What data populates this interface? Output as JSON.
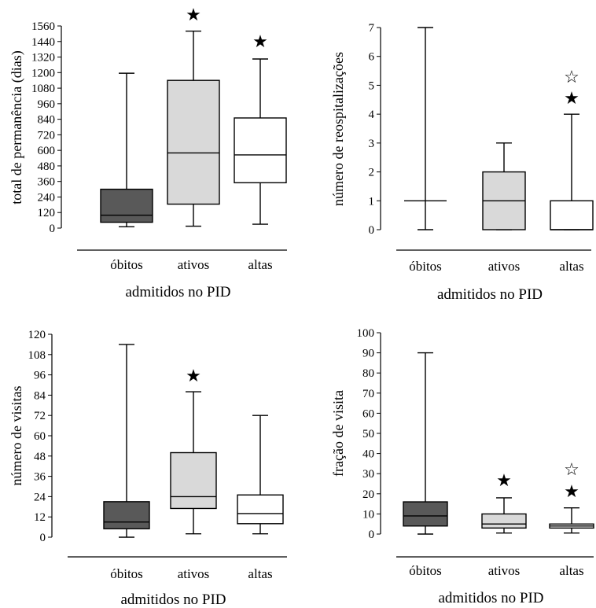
{
  "colors": {
    "obitos": "#595959",
    "ativos": "#d9d9d9",
    "altas": "#ffffff",
    "line": "#000000"
  },
  "chart_data": [
    {
      "type": "box",
      "ylabel": "total de permanência (dias)",
      "xlabel": "admitidos no PID",
      "categories": [
        "óbitos",
        "ativos",
        "altas"
      ],
      "ylim": [
        0,
        1560
      ],
      "yticks": [
        0,
        120,
        240,
        360,
        480,
        600,
        720,
        840,
        960,
        1080,
        1200,
        1320,
        1440,
        1560
      ],
      "boxes": [
        {
          "min": 10,
          "q1": 45,
          "median": 100,
          "q3": 300,
          "max": 1195,
          "fill": "#595959"
        },
        {
          "min": 15,
          "q1": 185,
          "median": 580,
          "q3": 1140,
          "max": 1520,
          "fill": "#d9d9d9"
        },
        {
          "min": 30,
          "q1": 350,
          "median": 565,
          "q3": 850,
          "max": 1305,
          "fill": "#ffffff"
        }
      ],
      "markers": [
        {
          "category": 1,
          "symbol": "★",
          "filled": true
        },
        {
          "category": 2,
          "symbol": "★",
          "filled": true
        }
      ]
    },
    {
      "type": "box",
      "ylabel": "número de reospitalizações",
      "xlabel": "admitidos no PID",
      "categories": [
        "óbitos",
        "ativos",
        "altas"
      ],
      "ylim": [
        0,
        7
      ],
      "yticks": [
        0,
        1,
        2,
        3,
        4,
        5,
        6,
        7
      ],
      "boxes": [
        {
          "min": 0,
          "q1": 1,
          "median": 1,
          "q3": 1,
          "max": 7,
          "fill": "#595959"
        },
        {
          "min": 0,
          "q1": 0,
          "median": 1,
          "q3": 2,
          "max": 3,
          "fill": "#d9d9d9"
        },
        {
          "min": 0,
          "q1": 0,
          "median": 0,
          "q3": 1,
          "max": 4,
          "fill": "#ffffff"
        }
      ],
      "markers": [
        {
          "category": 2,
          "symbol": "☆",
          "filled": false
        },
        {
          "category": 2,
          "symbol": "★",
          "filled": true
        }
      ]
    },
    {
      "type": "box",
      "ylabel": "número de visitas",
      "xlabel": "admitidos no PID",
      "categories": [
        "óbitos",
        "ativos",
        "altas"
      ],
      "ylim": [
        0,
        120
      ],
      "yticks": [
        0,
        12,
        24,
        36,
        48,
        60,
        72,
        84,
        96,
        108,
        120
      ],
      "boxes": [
        {
          "min": 0,
          "q1": 5,
          "median": 9,
          "q3": 21,
          "max": 114,
          "fill": "#595959"
        },
        {
          "min": 2,
          "q1": 17,
          "median": 24,
          "q3": 50,
          "max": 86,
          "fill": "#d9d9d9"
        },
        {
          "min": 2,
          "q1": 8,
          "median": 14,
          "q3": 25,
          "max": 72,
          "fill": "#ffffff"
        }
      ],
      "markers": [
        {
          "category": 1,
          "symbol": "★",
          "filled": true
        }
      ]
    },
    {
      "type": "box",
      "ylabel": "fração de visita",
      "xlabel": "admitidos no PID",
      "categories": [
        "óbitos",
        "ativos",
        "altas"
      ],
      "ylim": [
        0,
        100
      ],
      "yticks": [
        0,
        10,
        20,
        30,
        40,
        50,
        60,
        70,
        80,
        90,
        100
      ],
      "boxes": [
        {
          "min": 0,
          "q1": 4,
          "median": 9,
          "q3": 16,
          "max": 90,
          "fill": "#595959"
        },
        {
          "min": 0.5,
          "q1": 3,
          "median": 5,
          "q3": 10,
          "max": 18,
          "fill": "#d9d9d9"
        },
        {
          "min": 0.5,
          "q1": 3,
          "median": 4,
          "q3": 5,
          "max": 13,
          "fill": "#ffffff"
        }
      ],
      "markers": [
        {
          "category": 1,
          "symbol": "★",
          "filled": true
        },
        {
          "category": 2,
          "symbol": "☆",
          "filled": false
        },
        {
          "category": 2,
          "symbol": "★",
          "filled": true
        }
      ]
    }
  ]
}
